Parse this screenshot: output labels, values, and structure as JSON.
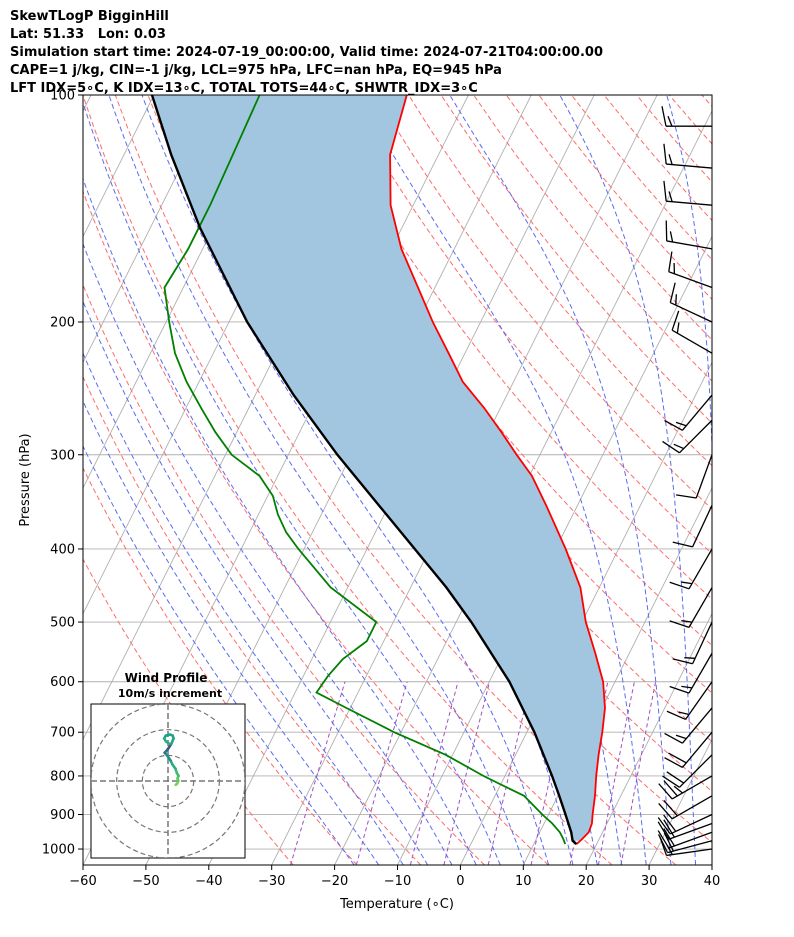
{
  "header": {
    "title": "SkewTLogP BigginHill",
    "location": "Lat: 51.33   Lon: 0.03",
    "times": "Simulation start time: 2024-07-19_00:00:00, Valid time: 2024-07-21T04:00:00.00",
    "indices1": "CAPE=1 j/kg, CIN=-1 j/kg, LCL=975 hPa, LFC=nan hPa, EQ=945 hPa",
    "indices2": "LFT IDX=5∘C, K IDX=13∘C, TOTAL TOTS=44∘C, SHWTR_IDX=3∘C"
  },
  "chart_data": [
    {
      "type": "line",
      "title": "SkewTLogP BigginHill",
      "xlabel": "Temperature (∘C)",
      "ylabel": "Pressure (hPa)",
      "xlim": [
        -60,
        40
      ],
      "ylim": [
        1050,
        100
      ],
      "skew_per_decade_degC": 60,
      "xticks": [
        -60,
        -50,
        -40,
        -30,
        -20,
        -10,
        0,
        10,
        20,
        30,
        40
      ],
      "yticks": [
        100,
        200,
        300,
        400,
        500,
        600,
        700,
        800,
        900,
        1000
      ],
      "ytick_labels": [
        "100",
        "200",
        "300",
        "400",
        "500",
        "600",
        "700",
        "800",
        "900",
        "1000"
      ],
      "grid": true,
      "colors": {
        "temperature": "#ff0000",
        "dewpoint": "#008000",
        "parcel": "#000000",
        "cape_fill": "#a2c6df",
        "dry_adiabat": "#ff6b6b",
        "moist_adiabat": "#5b6cf0",
        "mixing_ratio": "#a24ec0",
        "isotherm": "#b0b0b0"
      },
      "series": [
        {
          "name": "Temperature",
          "pressure": [
            985,
            970,
            950,
            925,
            900,
            850,
            800,
            750,
            700,
            650,
            600,
            550,
            500,
            450,
            400,
            350,
            320,
            300,
            280,
            260,
            240,
            220,
            200,
            180,
            160,
            140,
            120,
            100
          ],
          "values": [
            16.8,
            17.3,
            17.8,
            17.6,
            17.0,
            15.9,
            14.5,
            13.2,
            12.0,
            10.5,
            8.1,
            4.6,
            0.6,
            -3.0,
            -8.4,
            -15.0,
            -19.6,
            -23.7,
            -27.9,
            -32.6,
            -38.1,
            -42.6,
            -47.6,
            -52.7,
            -58.4,
            -63.6,
            -67.7,
            -69.8
          ]
        },
        {
          "name": "Dewpoint",
          "pressure": [
            985,
            970,
            950,
            925,
            900,
            850,
            800,
            750,
            700,
            650,
            620,
            590,
            560,
            530,
            500,
            450,
            400,
            380,
            360,
            340,
            320,
            300,
            280,
            260,
            240,
            220,
            200,
            180,
            160,
            140,
            120,
            100
          ],
          "values": [
            15.0,
            14.3,
            13.2,
            11.3,
            9.0,
            4.6,
            -3.4,
            -11.1,
            -21.1,
            -30.6,
            -36.6,
            -36.1,
            -35.1,
            -32.7,
            -32.7,
            -42.7,
            -50.9,
            -54.2,
            -56.9,
            -59.2,
            -62.9,
            -69.0,
            -73.4,
            -77.6,
            -82.0,
            -86.1,
            -89.5,
            -93.0,
            -92.3,
            -92.3,
            -92.7,
            -93.2
          ]
        },
        {
          "name": "Parcel profile",
          "pressure": [
            985,
            975,
            950,
            900,
            850,
            800,
            700,
            600,
            500,
            450,
            400,
            350,
            300,
            250,
            200,
            150,
            120,
            100
          ],
          "values": [
            16.8,
            15.9,
            15.0,
            12.7,
            10.2,
            7.5,
            1.2,
            -6.8,
            -17.6,
            -24.3,
            -32.4,
            -41.6,
            -52.2,
            -63.9,
            -77.1,
            -92.1,
            -102.5,
            -110.3
          ]
        }
      ],
      "wind_barbs": {
        "pressure": [
          1000,
          975,
          950,
          925,
          900,
          850,
          800,
          750,
          700,
          650,
          600,
          550,
          500,
          450,
          400,
          350,
          300,
          270,
          250,
          220,
          200,
          180,
          160,
          140,
          125,
          110
        ],
        "speed_kt": [
          15,
          20,
          20,
          20,
          20,
          20,
          25,
          20,
          20,
          15,
          15,
          15,
          15,
          15,
          15,
          10,
          10,
          15,
          15,
          15,
          15,
          15,
          15,
          15,
          15,
          15
        ],
        "direction_deg": [
          262,
          255,
          250,
          250,
          245,
          240,
          240,
          225,
          220,
          220,
          215,
          210,
          205,
          210,
          210,
          205,
          200,
          225,
          220,
          300,
          295,
          290,
          280,
          275,
          275,
          270
        ]
      }
    },
    {
      "type": "line",
      "title": "Wind Profile",
      "subtitle": "10m/s increment",
      "rings_ms": [
        10,
        20,
        30
      ],
      "axes_limit_ms": 30,
      "grid": true,
      "series": [
        {
          "name": "Hodograph",
          "u_ms": [
            3.0,
            3.6,
            4.0,
            3.7,
            4.1,
            3.5,
            2.9,
            1.7,
            1.0,
            0.0,
            -1.3,
            0.0,
            1.3,
            2.2,
            1.8,
            0.8,
            -0.8,
            -1.5,
            -0.8,
            0.5
          ],
          "v_ms": [
            -1.5,
            -1.0,
            0.0,
            1.0,
            2.0,
            3.0,
            4.8,
            6.5,
            8.0,
            9.5,
            11.0,
            12.5,
            14.5,
            16.6,
            17.7,
            18.1,
            17.7,
            16.6,
            15.4,
            14.5
          ],
          "colors": [
            "#7ad151",
            "#7ad151",
            "#5ec962",
            "#5ec962",
            "#3fbc73",
            "#3fbc73",
            "#28ae80",
            "#28ae80",
            "#21918c",
            "#21918c",
            "#2c728e",
            "#3b528b",
            "#21a585",
            "#21a585",
            "#20a486",
            "#1fa187",
            "#1f9e89",
            "#22a884",
            "#2ab07f",
            "#2fb47c"
          ]
        }
      ]
    }
  ]
}
